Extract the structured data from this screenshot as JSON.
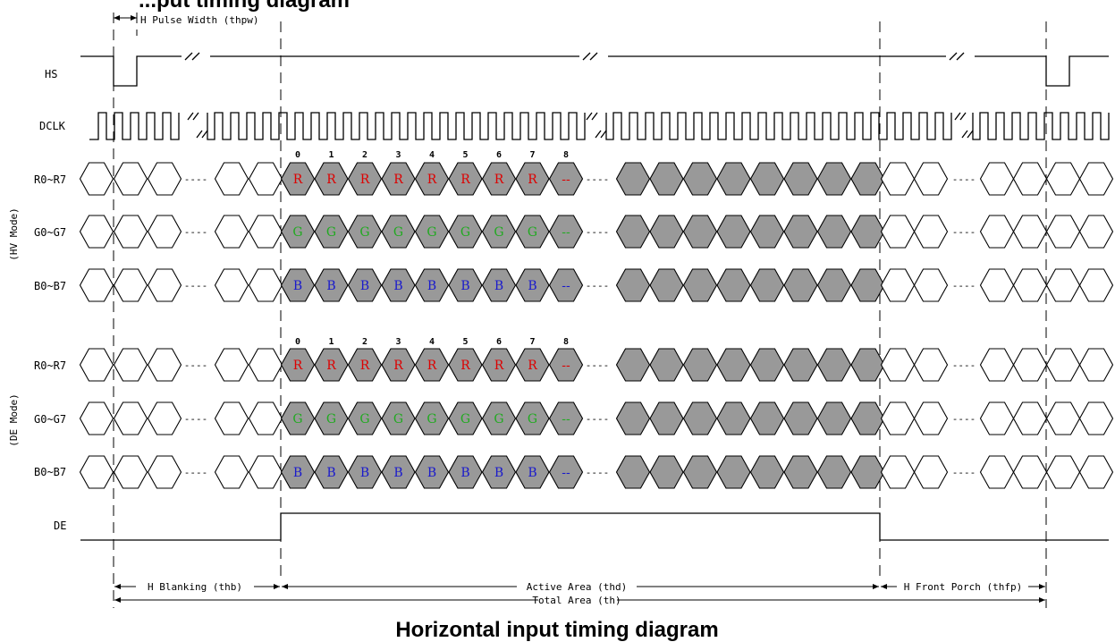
{
  "header_partial": "...put timing diagram",
  "caption": "Horizontal input timing diagram",
  "signals": {
    "hs": "HS",
    "dclk": "DCLK",
    "de": "DE",
    "red": "R0~R7",
    "green": "G0~G7",
    "blue": "B0~B7"
  },
  "groups": {
    "hv": "(HV Mode)",
    "de": "(DE Mode)"
  },
  "annotations": {
    "pulse_width": "H Pulse Width (thpw)",
    "blanking": "H Blanking (thb)",
    "active": "Active Area (thd)",
    "front_porch": "H Front Porch (thfp)",
    "total": "Total Area (th)"
  },
  "cell_labels": {
    "red": "R",
    "green": "G",
    "blue": "B",
    "last": "--"
  },
  "indices": [
    "0",
    "1",
    "2",
    "3",
    "4",
    "5",
    "6",
    "7",
    "8"
  ],
  "ellipsis": "----",
  "colors": {
    "red": "#dd0000",
    "green": "#22aa22",
    "blue": "#1a1acc",
    "active_fill": "#999999"
  }
}
